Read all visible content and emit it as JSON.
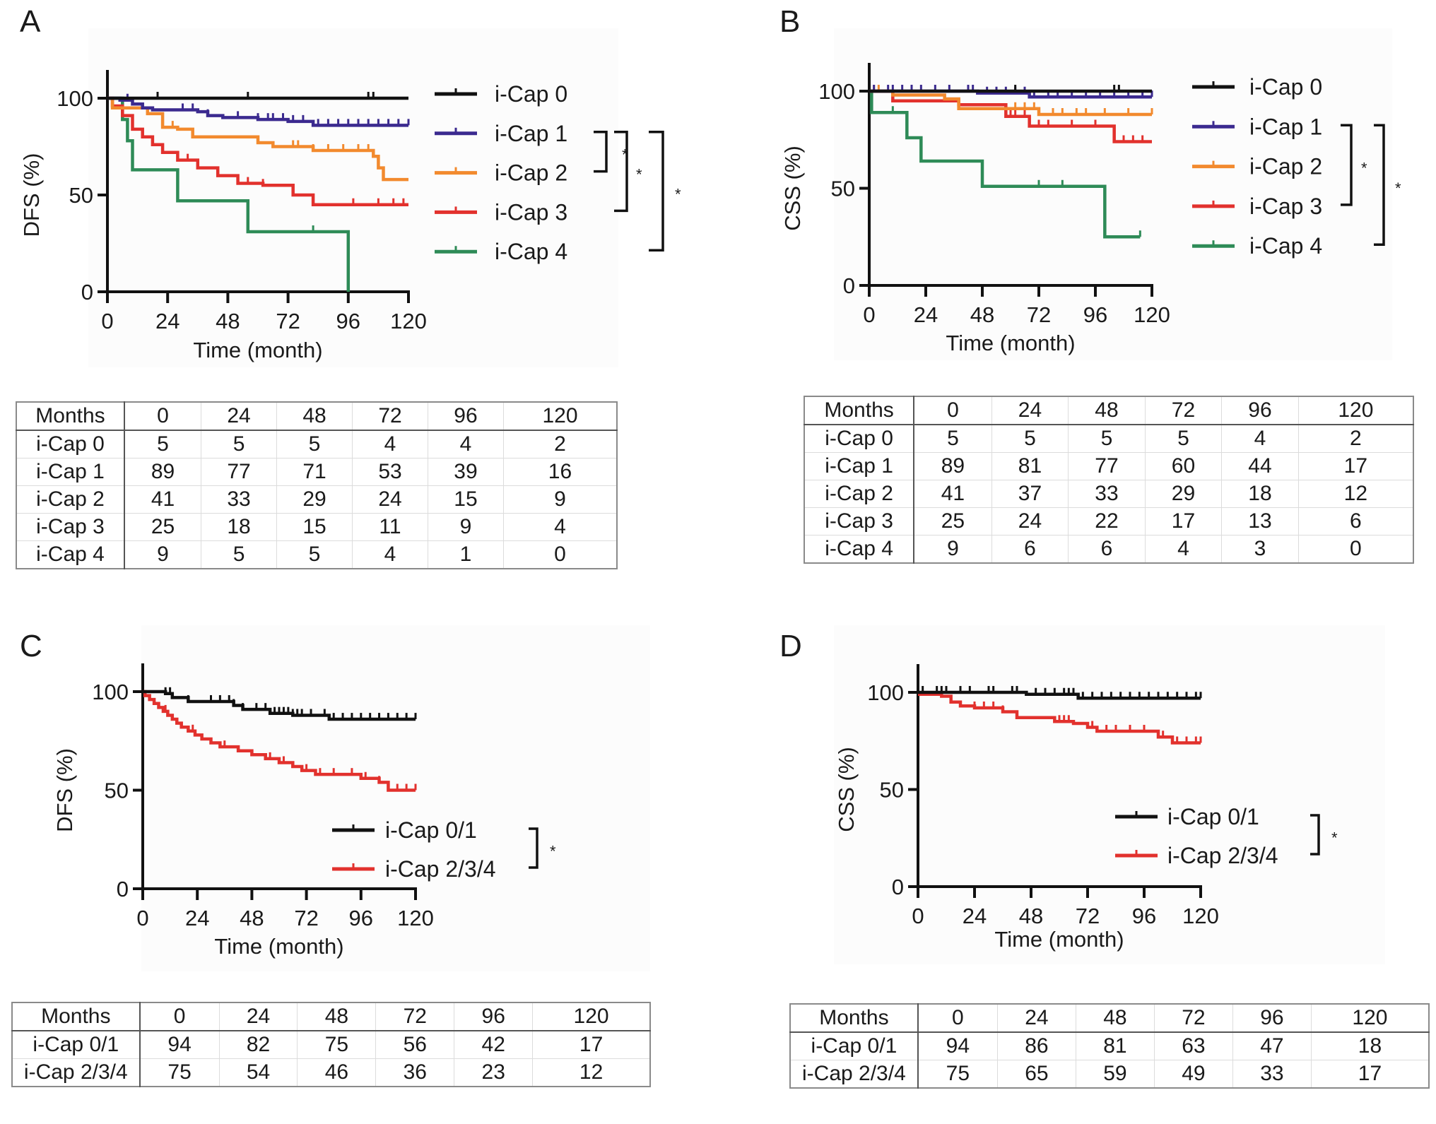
{
  "figure": {
    "panels": [
      "A",
      "B",
      "C",
      "D"
    ]
  },
  "colors": {
    "i-Cap 0": "#111111",
    "i-Cap 1": "#3b2a8f",
    "i-Cap 2": "#f28a2e",
    "i-Cap 3": "#e2312d",
    "i-Cap 4": "#2e8b57",
    "i-Cap 0/1": "#111111",
    "i-Cap 2/3/4": "#e2312d"
  },
  "chart_data": [
    {
      "panel": "A",
      "type": "line",
      "subtype": "kaplan-meier",
      "title": "",
      "xlabel": "Time (month)",
      "ylabel": "DFS (%)",
      "xlim": [
        0,
        120
      ],
      "ylim": [
        0,
        100
      ],
      "xticks": [
        0,
        24,
        48,
        72,
        96,
        120
      ],
      "yticks": [
        0,
        50,
        100
      ],
      "grid": false,
      "legend": "right",
      "series": [
        {
          "name": "i-Cap 0",
          "steps": [
            [
              0,
              100
            ],
            [
              120,
              100
            ]
          ],
          "censor": [
            20,
            56,
            104,
            106
          ]
        },
        {
          "name": "i-Cap 1",
          "steps": [
            [
              0,
              100
            ],
            [
              5,
              99
            ],
            [
              10,
              97
            ],
            [
              14,
              95
            ],
            [
              18,
              94
            ],
            [
              30,
              94
            ],
            [
              36,
              93
            ],
            [
              40,
              91
            ],
            [
              46,
              90
            ],
            [
              60,
              89
            ],
            [
              72,
              88
            ],
            [
              82,
              86
            ],
            [
              120,
              86
            ]
          ],
          "censor": [
            8,
            10,
            30,
            34,
            40,
            52,
            60,
            64,
            66,
            70,
            74,
            78,
            84,
            88,
            92,
            96,
            100,
            104,
            108,
            112,
            116,
            120
          ]
        },
        {
          "name": "i-Cap 2",
          "steps": [
            [
              0,
              100
            ],
            [
              2,
              95
            ],
            [
              16,
              92
            ],
            [
              22,
              85
            ],
            [
              28,
              84
            ],
            [
              34,
              80
            ],
            [
              60,
              77
            ],
            [
              66,
              75
            ],
            [
              82,
              73
            ],
            [
              106,
              70
            ],
            [
              108,
              64
            ],
            [
              110,
              58
            ],
            [
              120,
              58
            ]
          ],
          "censor": [
            2,
            26,
            74,
            76,
            82,
            88,
            94,
            100,
            104
          ]
        },
        {
          "name": "i-Cap 3",
          "steps": [
            [
              0,
              100
            ],
            [
              2,
              96
            ],
            [
              6,
              91
            ],
            [
              10,
              84
            ],
            [
              14,
              80
            ],
            [
              18,
              76
            ],
            [
              22,
              72
            ],
            [
              28,
              68
            ],
            [
              36,
              64
            ],
            [
              44,
              60
            ],
            [
              52,
              56
            ],
            [
              62,
              55
            ],
            [
              74,
              50
            ],
            [
              82,
              45
            ],
            [
              120,
              45
            ]
          ],
          "censor": [
            32,
            56,
            62,
            98,
            108,
            114,
            118
          ]
        },
        {
          "name": "i-Cap 4",
          "steps": [
            [
              0,
              100
            ],
            [
              6,
              89
            ],
            [
              8,
              78
            ],
            [
              10,
              63
            ],
            [
              28,
              47
            ],
            [
              56,
              31
            ],
            [
              96,
              31
            ],
            [
              96,
              0
            ]
          ],
          "censor": [
            82
          ]
        }
      ],
      "significance": [
        {
          "groups": [
            "i-Cap 1",
            "i-Cap 2"
          ],
          "label": "*"
        },
        {
          "groups": [
            "i-Cap 1",
            "i-Cap 3"
          ],
          "label": "*"
        },
        {
          "groups": [
            "i-Cap 1",
            "i-Cap 4"
          ],
          "label": "*"
        }
      ]
    },
    {
      "panel": "B",
      "type": "line",
      "subtype": "kaplan-meier",
      "title": "",
      "xlabel": "Time (month)",
      "ylabel": "CSS (%)",
      "xlim": [
        0,
        120
      ],
      "ylim": [
        0,
        100
      ],
      "xticks": [
        0,
        24,
        48,
        72,
        96,
        120
      ],
      "yticks": [
        0,
        50,
        100
      ],
      "grid": false,
      "legend": "right",
      "series": [
        {
          "name": "i-Cap 0",
          "steps": [
            [
              0,
              100
            ],
            [
              120,
              100
            ]
          ],
          "censor": [
            62,
            104,
            106
          ]
        },
        {
          "name": "i-Cap 1",
          "steps": [
            [
              0,
              100
            ],
            [
              46,
              99
            ],
            [
              68,
              97
            ],
            [
              120,
              97
            ]
          ],
          "censor": [
            2,
            8,
            10,
            14,
            18,
            22,
            28,
            34,
            42,
            44,
            50,
            54,
            58,
            62,
            66,
            70,
            76,
            80,
            86,
            92,
            98,
            104,
            110,
            116,
            120
          ]
        },
        {
          "name": "i-Cap 2",
          "steps": [
            [
              0,
              100
            ],
            [
              10,
              98
            ],
            [
              32,
              96
            ],
            [
              38,
              91
            ],
            [
              72,
              88
            ],
            [
              120,
              88
            ]
          ],
          "censor": [
            2,
            4,
            62,
            66,
            70,
            72,
            78,
            82,
            88,
            92,
            100,
            110,
            120
          ]
        },
        {
          "name": "i-Cap 3",
          "steps": [
            [
              0,
              100
            ],
            [
              10,
              95
            ],
            [
              38,
              93
            ],
            [
              58,
              87
            ],
            [
              68,
              82
            ],
            [
              104,
              74
            ],
            [
              120,
              74
            ]
          ],
          "censor": [
            60,
            62,
            66,
            72,
            76,
            86,
            96,
            104,
            108,
            112,
            116
          ]
        },
        {
          "name": "i-Cap 4",
          "steps": [
            [
              0,
              100
            ],
            [
              1,
              89
            ],
            [
              16,
              76
            ],
            [
              22,
              64
            ],
            [
              48,
              51
            ],
            [
              100,
              25
            ],
            [
              115,
              25
            ]
          ],
          "censor": [
            10,
            72,
            82,
            115
          ]
        }
      ],
      "significance": [
        {
          "groups": [
            "i-Cap 1",
            "i-Cap 3"
          ],
          "label": "*"
        },
        {
          "groups": [
            "i-Cap 1",
            "i-Cap 4"
          ],
          "label": "*"
        }
      ]
    },
    {
      "panel": "C",
      "type": "line",
      "subtype": "kaplan-meier",
      "title": "",
      "xlabel": "Time (month)",
      "ylabel": "DFS (%)",
      "xlim": [
        0,
        120
      ],
      "ylim": [
        0,
        100
      ],
      "xticks": [
        0,
        24,
        48,
        72,
        96,
        120
      ],
      "yticks": [
        0,
        50,
        100
      ],
      "grid": false,
      "legend": "lower-right",
      "series": [
        {
          "name": "i-Cap 0/1",
          "steps": [
            [
              0,
              100
            ],
            [
              10,
              99
            ],
            [
              13,
              97
            ],
            [
              20,
              95
            ],
            [
              36,
              95
            ],
            [
              40,
              93
            ],
            [
              44,
              91
            ],
            [
              52,
              91
            ],
            [
              56,
              89
            ],
            [
              66,
              88
            ],
            [
              78,
              88
            ],
            [
              82,
              86
            ],
            [
              120,
              86
            ]
          ],
          "censor": [
            10,
            12,
            20,
            30,
            34,
            38,
            40,
            44,
            50,
            54,
            58,
            60,
            62,
            64,
            66,
            68,
            70,
            74,
            80,
            84,
            88,
            92,
            96,
            100,
            104,
            108,
            112,
            116,
            120
          ]
        },
        {
          "name": "i-Cap 2/3/4",
          "steps": [
            [
              0,
              100
            ],
            [
              1,
              98
            ],
            [
              3,
              96
            ],
            [
              5,
              94
            ],
            [
              7,
              92
            ],
            [
              9,
              90
            ],
            [
              11,
              88
            ],
            [
              13,
              86
            ],
            [
              15,
              84
            ],
            [
              17,
              82
            ],
            [
              20,
              80
            ],
            [
              23,
              78
            ],
            [
              26,
              76
            ],
            [
              30,
              74
            ],
            [
              34,
              72
            ],
            [
              42,
              70
            ],
            [
              48,
              68
            ],
            [
              54,
              66
            ],
            [
              60,
              64
            ],
            [
              66,
              62
            ],
            [
              70,
              60
            ],
            [
              76,
              58
            ],
            [
              96,
              56
            ],
            [
              104,
              54
            ],
            [
              108,
              50
            ],
            [
              120,
              50
            ]
          ],
          "censor": [
            10,
            22,
            36,
            56,
            62,
            72,
            78,
            84,
            92,
            98,
            104,
            112,
            116,
            120
          ]
        }
      ],
      "significance": [
        {
          "groups": [
            "i-Cap 0/1",
            "i-Cap 2/3/4"
          ],
          "label": "*"
        }
      ]
    },
    {
      "panel": "D",
      "type": "line",
      "subtype": "kaplan-meier",
      "title": "",
      "xlabel": "Time (month)",
      "ylabel": "CSS (%)",
      "xlim": [
        0,
        120
      ],
      "ylim": [
        0,
        100
      ],
      "xticks": [
        0,
        24,
        48,
        72,
        96,
        120
      ],
      "yticks": [
        0,
        50,
        100
      ],
      "grid": false,
      "legend": "lower-right",
      "series": [
        {
          "name": "i-Cap 0/1",
          "steps": [
            [
              0,
              100
            ],
            [
              46,
              99
            ],
            [
              68,
              97
            ],
            [
              120,
              97
            ]
          ],
          "censor": [
            2,
            8,
            10,
            12,
            18,
            22,
            30,
            32,
            40,
            42,
            50,
            54,
            58,
            62,
            64,
            66,
            70,
            74,
            78,
            82,
            86,
            90,
            94,
            98,
            102,
            106,
            110,
            114,
            118,
            120
          ]
        },
        {
          "name": "i-Cap 2/3/4",
          "steps": [
            [
              0,
              99
            ],
            [
              10,
              98
            ],
            [
              14,
              95
            ],
            [
              18,
              93
            ],
            [
              24,
              92
            ],
            [
              36,
              90
            ],
            [
              42,
              87
            ],
            [
              58,
              85
            ],
            [
              66,
              84
            ],
            [
              72,
              82
            ],
            [
              76,
              80
            ],
            [
              102,
              77
            ],
            [
              108,
              74
            ],
            [
              120,
              74
            ]
          ],
          "censor": [
            24,
            28,
            32,
            36,
            60,
            62,
            64,
            74,
            80,
            84,
            90,
            96,
            104,
            110,
            114,
            118,
            120
          ]
        }
      ],
      "significance": [
        {
          "groups": [
            "i-Cap 0/1",
            "i-Cap 2/3/4"
          ],
          "label": "*"
        }
      ]
    }
  ],
  "tables": {
    "A": {
      "header": [
        "Months",
        "0",
        "24",
        "48",
        "72",
        "96",
        "120"
      ],
      "rows": [
        [
          "i-Cap 0",
          "5",
          "5",
          "5",
          "4",
          "4",
          "2"
        ],
        [
          "i-Cap 1",
          "89",
          "77",
          "71",
          "53",
          "39",
          "16"
        ],
        [
          "i-Cap 2",
          "41",
          "33",
          "29",
          "24",
          "15",
          "9"
        ],
        [
          "i-Cap 3",
          "25",
          "18",
          "15",
          "11",
          "9",
          "4"
        ],
        [
          "i-Cap 4",
          "9",
          "5",
          "5",
          "4",
          "1",
          "0"
        ]
      ]
    },
    "B": {
      "header": [
        "Months",
        "0",
        "24",
        "48",
        "72",
        "96",
        "120"
      ],
      "rows": [
        [
          "i-Cap 0",
          "5",
          "5",
          "5",
          "5",
          "4",
          "2"
        ],
        [
          "i-Cap 1",
          "89",
          "81",
          "77",
          "60",
          "44",
          "17"
        ],
        [
          "i-Cap 2",
          "41",
          "37",
          "33",
          "29",
          "18",
          "12"
        ],
        [
          "i-Cap 3",
          "25",
          "24",
          "22",
          "17",
          "13",
          "6"
        ],
        [
          "i-Cap 4",
          "9",
          "6",
          "6",
          "4",
          "3",
          "0"
        ]
      ]
    },
    "C": {
      "header": [
        "Months",
        "0",
        "24",
        "48",
        "72",
        "96",
        "120"
      ],
      "rows": [
        [
          "i-Cap 0/1",
          "94",
          "82",
          "75",
          "56",
          "42",
          "17"
        ],
        [
          "i-Cap 2/3/4",
          "75",
          "54",
          "46",
          "36",
          "23",
          "12"
        ]
      ]
    },
    "D": {
      "header": [
        "Months",
        "0",
        "24",
        "48",
        "72",
        "96",
        "120"
      ],
      "rows": [
        [
          "i-Cap 0/1",
          "94",
          "86",
          "81",
          "63",
          "47",
          "18"
        ],
        [
          "i-Cap 2/3/4",
          "75",
          "65",
          "59",
          "49",
          "33",
          "17"
        ]
      ]
    }
  }
}
